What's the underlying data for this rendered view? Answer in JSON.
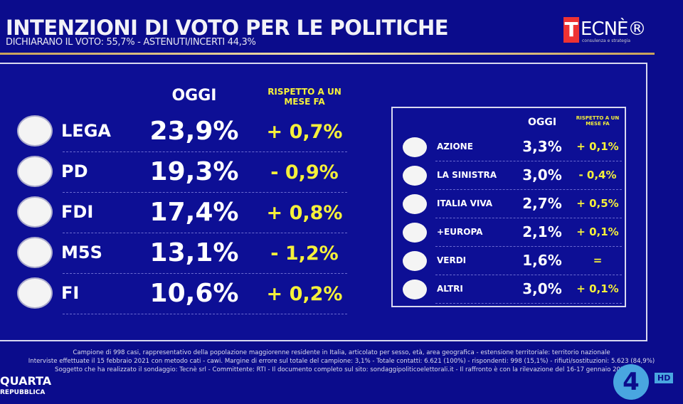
{
  "header": {
    "title": "INTENZIONI DI VOTO PER LE POLITICHE",
    "subtitle": "DICHIARANO IL VOTO: 55,7% - ASTENUTI/INCERTI 44,3%",
    "logo_text": "TECNÈ",
    "logo_tagline": "consulenza e strategia"
  },
  "chart_data": {
    "type": "table",
    "title": "INTENZIONI DI VOTO PER LE POLITICHE",
    "columns": [
      "OGGI",
      "RISPETTO A UN MESE FA"
    ],
    "main": [
      {
        "party": "LEGA",
        "oggi": "23,9%",
        "change": "+ 0,7%"
      },
      {
        "party": "PD",
        "oggi": "19,3%",
        "change": "- 0,9%"
      },
      {
        "party": "FDI",
        "oggi": "17,4%",
        "change": "+ 0,8%"
      },
      {
        "party": "M5S",
        "oggi": "13,1%",
        "change": "- 1,2%"
      },
      {
        "party": "FI",
        "oggi": "10,6%",
        "change": "+ 0,2%"
      }
    ],
    "minor": [
      {
        "party": "AZIONE",
        "oggi": "3,3%",
        "change": "+ 0,1%"
      },
      {
        "party": "LA SINISTRA",
        "oggi": "3,0%",
        "change": "- 0,4%"
      },
      {
        "party": "ITALIA VIVA",
        "oggi": "2,7%",
        "change": "+ 0,5%"
      },
      {
        "party": "+EUROPA",
        "oggi": "2,1%",
        "change": "+ 0,1%"
      },
      {
        "party": "VERDI",
        "oggi": "1,6%",
        "change": "="
      },
      {
        "party": "ALTRI",
        "oggi": "3,0%",
        "change": "+ 0,1%"
      }
    ]
  },
  "labels": {
    "oggi": "OGGI",
    "rispetto": "RISPETTO A UN MESE FA"
  },
  "footer": [
    "Campione di 998 casi, rappresentativo della popolazione maggiorenne residente in Italia, articolato per sesso, età, area geografica - estensione territoriale: territorio nazionale",
    "Interviste effettuate il 15 febbraio 2021 con metodo cati - cawi. Margine di errore sul totale del campione: 3,1% - Totale contatti: 6.621 (100%) - rispondenti: 998 (15,1%) - rifiuti/sostituzioni: 5.623 (84,9%)",
    "Soggetto che ha realizzato il sondaggio: Tecnè srl - Committente: RTI - Il documento completo sul sito: sondaggipoliticoelettorali.it - Il raffronto è con la rilevazione del 16-17 gennaio 2021"
  ],
  "branding": {
    "show_line1": "QUARTA",
    "show_line2": "REPUBBLICA",
    "channel": "4",
    "hd": "HD"
  },
  "colors": {
    "background": "#0b0c8c",
    "accent": "#f5f03a"
  }
}
